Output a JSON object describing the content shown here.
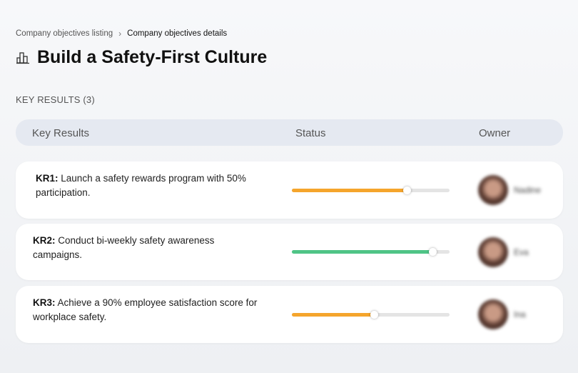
{
  "breadcrumb": [
    "Company objectives listing",
    "Company objectives details"
  ],
  "title": "Build a Safety-First Culture",
  "section_title": "KEY RESULTS (3)",
  "table": {
    "headers": [
      "Key Results",
      "Status",
      "Owner"
    ],
    "rows": [
      {
        "label": "KR1:",
        "description": "Launch a safety rewards program with 50% participation.",
        "progress": 73,
        "color": "#f5a52c",
        "owner": "Nadine"
      },
      {
        "label": "KR2:",
        "description": "Conduct bi-weekly safety awareness campaigns.",
        "progress": 89,
        "color": "#4fc486",
        "owner": "Eva"
      },
      {
        "label": "KR3:",
        "description": "Achieve a 90% employee satisfaction score for workplace safety.",
        "progress": 52,
        "color": "#f5a52c",
        "owner": "Ina"
      }
    ]
  }
}
